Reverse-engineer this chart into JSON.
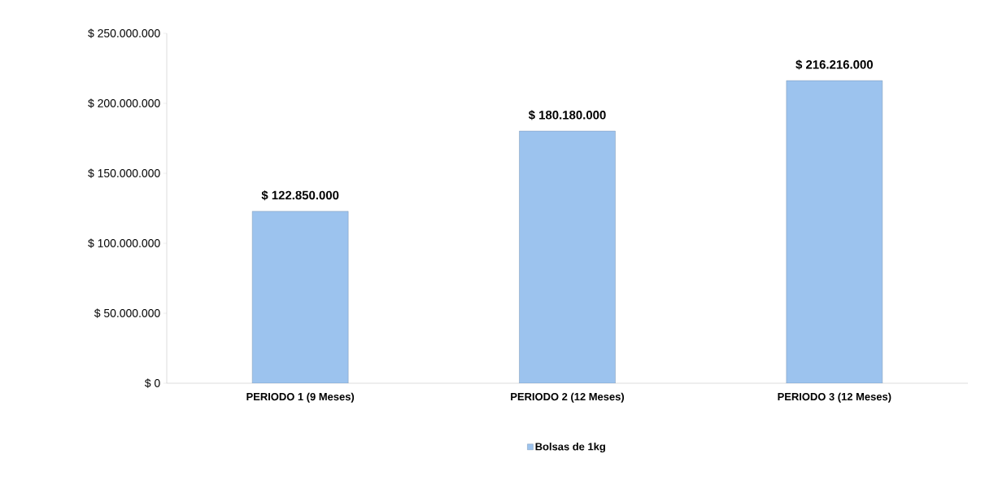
{
  "chart_data": {
    "type": "bar",
    "categories": [
      "PERIODO 1      (9 Meses)",
      "PERIODO 2      (12 Meses)",
      "PERIODO 3  (12 Meses)"
    ],
    "series": [
      {
        "name": "Bolsas de 1kg",
        "color": "#9cc3ee",
        "values": [
          122850000,
          180180000,
          216216000
        ],
        "value_labels": [
          "$ 122.850.000",
          "$ 180.180.000",
          "$ 216.216.000"
        ]
      }
    ],
    "ylim": [
      0,
      250000000
    ],
    "yticks": [
      {
        "value": 0,
        "label": "$ 0"
      },
      {
        "value": 50000000,
        "label": "$ 50.000.000"
      },
      {
        "value": 100000000,
        "label": "$ 100.000.000"
      },
      {
        "value": 150000000,
        "label": "$ 150.000.000"
      },
      {
        "value": 200000000,
        "label": "$ 200.000.000"
      },
      {
        "value": 250000000,
        "label": "$ 250.000.000"
      }
    ],
    "grid": false,
    "legend": "bottom"
  }
}
